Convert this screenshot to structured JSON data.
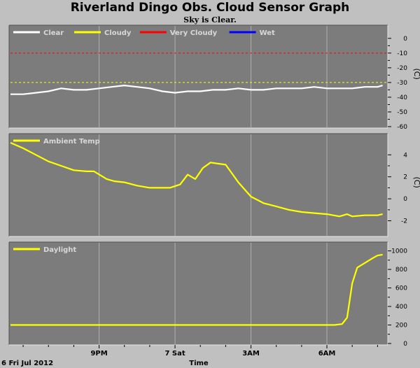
{
  "header": {
    "title": "Riverland Dingo Obs. Cloud Sensor Graph",
    "subtitle": "Sky is Clear."
  },
  "footer": {
    "date": "6 Fri Jul 2012",
    "xlabel": "Time"
  },
  "chart_data": [
    {
      "type": "line",
      "panel": "sky",
      "legend": [
        "Clear",
        "Cloudy",
        "Very Cloudy",
        "Wet"
      ],
      "legend_colors": [
        "#ffffff",
        "#ffff00",
        "#ff0000",
        "#0000ff"
      ],
      "ylabel": "(C)",
      "yticks": [
        0,
        -10,
        -20,
        -30,
        -40,
        -50,
        -60
      ],
      "ylim": [
        -60,
        8
      ],
      "thresholds": [
        {
          "name": "Very Cloudy",
          "value": -10,
          "color": "#ff0000"
        },
        {
          "name": "Cloudy",
          "value": -30,
          "color": "#ffff00"
        }
      ],
      "series": [
        {
          "name": "Clear",
          "color": "#ffffff",
          "x": [
            17.5,
            18.0,
            18.5,
            19.0,
            19.5,
            20.0,
            20.5,
            21.0,
            21.5,
            22.0,
            22.5,
            23.0,
            23.5,
            24.0,
            24.5,
            25.0,
            25.5,
            26.0,
            26.5,
            27.0,
            27.5,
            28.0,
            28.5,
            29.0,
            29.5,
            30.0,
            30.5,
            31.0,
            31.5,
            32.0,
            32.2
          ],
          "y": [
            -38,
            -38,
            -37,
            -36,
            -34,
            -35,
            -35,
            -34,
            -33,
            -32,
            -33,
            -34,
            -36,
            -37,
            -36,
            -36,
            -35,
            -35,
            -34,
            -35,
            -35,
            -34,
            -34,
            -34,
            -33,
            -34,
            -34,
            -34,
            -33,
            -33,
            -32
          ]
        }
      ]
    },
    {
      "type": "line",
      "panel": "ambient",
      "legend": [
        "Ambient Temp"
      ],
      "legend_colors": [
        "#ffff00"
      ],
      "ylabel": "(C)",
      "yticks": [
        4,
        2,
        0,
        -2
      ],
      "ylim": [
        -3.3,
        5.8
      ],
      "series": [
        {
          "name": "Ambient Temp",
          "color": "#ffff00",
          "x": [
            17.5,
            18.0,
            18.5,
            19.0,
            19.5,
            20.0,
            20.5,
            20.8,
            21.3,
            21.6,
            22.0,
            22.5,
            23.0,
            23.5,
            23.8,
            24.2,
            24.5,
            24.8,
            25.1,
            25.4,
            25.7,
            26.0,
            26.5,
            27.0,
            27.5,
            28.0,
            28.5,
            29.0,
            29.5,
            30.0,
            30.5,
            30.8,
            31.0,
            31.5,
            32.0,
            32.2
          ],
          "y": [
            5.1,
            4.6,
            4.0,
            3.4,
            3.0,
            2.6,
            2.5,
            2.5,
            1.8,
            1.6,
            1.5,
            1.2,
            1.0,
            1.0,
            1.0,
            1.3,
            2.2,
            1.8,
            2.8,
            3.3,
            3.2,
            3.1,
            1.5,
            0.2,
            -0.4,
            -0.7,
            -1.0,
            -1.2,
            -1.3,
            -1.4,
            -1.6,
            -1.4,
            -1.6,
            -1.5,
            -1.5,
            -1.4
          ]
        }
      ]
    },
    {
      "type": "line",
      "panel": "daylight",
      "legend": [
        "Daylight"
      ],
      "legend_colors": [
        "#ffff00"
      ],
      "yticks": [
        1000,
        800,
        600,
        400,
        200,
        0
      ],
      "ylim": [
        0,
        1080
      ],
      "series": [
        {
          "name": "Daylight",
          "color": "#ffff00",
          "x": [
            17.5,
            20.0,
            22.0,
            24.0,
            26.0,
            28.0,
            29.5,
            30.3,
            30.6,
            30.8,
            31.0,
            31.2,
            31.5,
            31.8,
            32.0,
            32.2
          ],
          "y": [
            200,
            200,
            200,
            200,
            200,
            200,
            200,
            200,
            210,
            280,
            650,
            820,
            870,
            920,
            950,
            960
          ]
        }
      ]
    }
  ],
  "x_axis": {
    "tick_labels": [
      "9PM",
      "7 Sat",
      "3AM",
      "6AM"
    ],
    "tick_hours": [
      21,
      24,
      27,
      30
    ]
  }
}
